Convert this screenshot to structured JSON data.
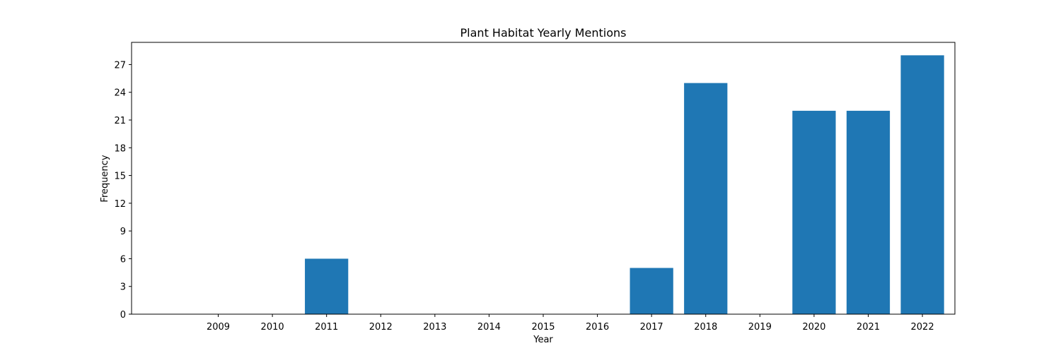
{
  "chart_data": {
    "type": "bar",
    "title": "Plant Habitat Yearly Mentions",
    "xlabel": "Year",
    "ylabel": "Frequency",
    "categories": [
      "2009",
      "2010",
      "2011",
      "2012",
      "2013",
      "2014",
      "2015",
      "2016",
      "2017",
      "2018",
      "2019",
      "2020",
      "2021",
      "2022"
    ],
    "values": [
      0,
      0,
      6,
      0,
      0,
      0,
      0,
      0,
      5,
      25,
      0,
      22,
      22,
      28
    ],
    "ylim": [
      0,
      29.4
    ],
    "yticks": [
      0,
      3,
      6,
      9,
      12,
      15,
      18,
      21,
      24,
      27
    ],
    "bar_color": "#1f77b4",
    "grid": false,
    "legend": "none"
  }
}
